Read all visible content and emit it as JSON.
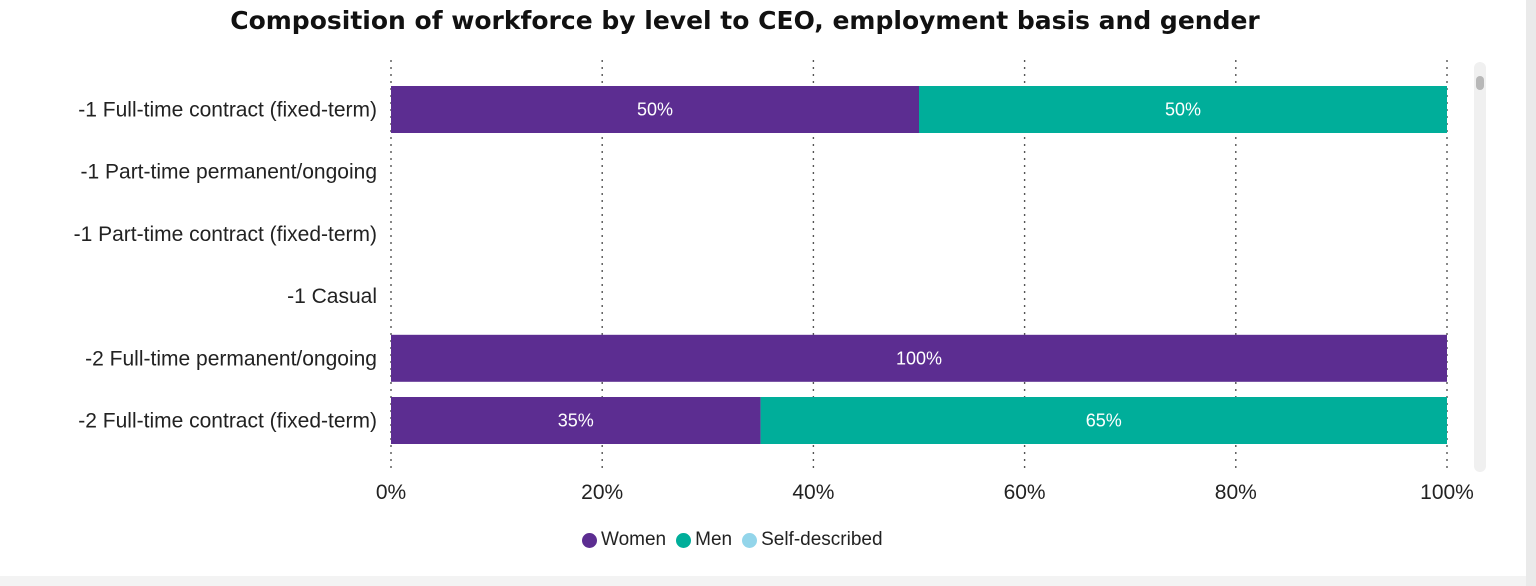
{
  "chart_data": {
    "type": "bar",
    "orientation": "horizontal",
    "stacked": "100%",
    "title": "Composition of workforce by level to CEO, employment basis and gender",
    "categories": [
      "-1 Full-time contract (fixed-term)",
      "-1 Part-time permanent/ongoing",
      "-1 Part-time contract (fixed-term)",
      "-1 Casual",
      "-2 Full-time permanent/ongoing",
      "-2 Full-time contract (fixed-term)"
    ],
    "series": [
      {
        "name": "Women",
        "color": "#5c2d91",
        "values": [
          50,
          0,
          0,
          0,
          100,
          35
        ]
      },
      {
        "name": "Men",
        "color": "#00ae9a",
        "values": [
          50,
          0,
          0,
          0,
          0,
          65
        ]
      },
      {
        "name": "Self-described",
        "color": "#93d5ea",
        "values": [
          0,
          0,
          0,
          0,
          0,
          0
        ]
      }
    ],
    "data_labels": [
      [
        "50%",
        "",
        "",
        "",
        "100%",
        "35%"
      ],
      [
        "50%",
        "",
        "",
        "",
        "",
        "65%"
      ],
      [
        "",
        "",
        "",
        "",
        "",
        ""
      ]
    ],
    "xlim": [
      0,
      100
    ],
    "xticks": [
      0,
      20,
      40,
      60,
      80,
      100
    ],
    "xtick_labels": [
      "0%",
      "20%",
      "40%",
      "60%",
      "80%",
      "100%"
    ],
    "grid": "vertical dotted",
    "legend_position": "bottom-center"
  }
}
